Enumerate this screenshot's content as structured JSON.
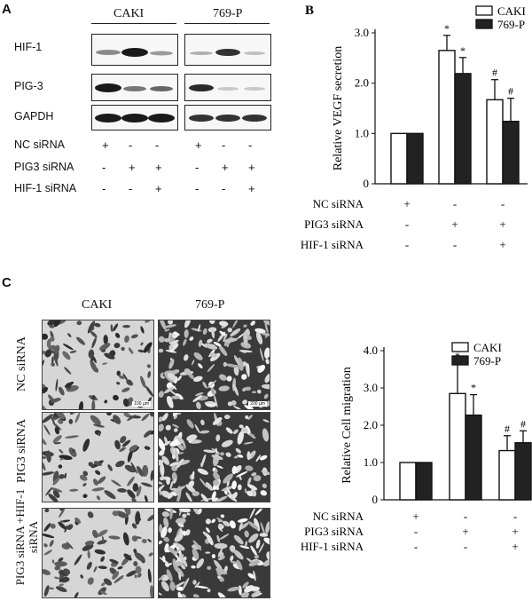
{
  "panel_a": {
    "letter": "A",
    "cell_lines": [
      "CAKI",
      "769-P"
    ],
    "blot_rows": [
      "HIF-1",
      "PIG-3",
      "GAPDH"
    ],
    "conditions": [
      {
        "name": "NC siRNA",
        "marks": [
          "+",
          "-",
          "-",
          "+",
          "-",
          "-"
        ]
      },
      {
        "name": "PIG3 siRNA",
        "marks": [
          "-",
          "+",
          "+",
          "-",
          "+",
          "+"
        ]
      },
      {
        "name": "HIF-1 siRNA",
        "marks": [
          "-",
          "-",
          "+",
          "-",
          "-",
          "+"
        ]
      }
    ]
  },
  "panel_c": {
    "letter": "C",
    "cell_lines": [
      "CAKI",
      "769-P"
    ],
    "row_labels": [
      "NC siRNA",
      "PIG3 siRNA",
      "PIG3 siRNA +HIF-1 siRNA"
    ],
    "scale_bars": [
      "100 µm",
      "200 µm"
    ]
  },
  "chart_data": [
    {
      "letter": "B",
      "type": "bar",
      "ylabel": "Relative VEGF secretion",
      "ylim": [
        0,
        3.0
      ],
      "yticks": [
        "0",
        "1.0",
        "2.0",
        "3.0"
      ],
      "groups": 3,
      "series": [
        {
          "name": "CAKI",
          "values": [
            1.0,
            2.65,
            1.67
          ],
          "errors": [
            0,
            0.3,
            0.4
          ],
          "marks": [
            "",
            "*",
            "#"
          ],
          "fill": "#ffffff"
        },
        {
          "name": "769-P",
          "values": [
            1.0,
            2.19,
            1.24
          ],
          "errors": [
            0,
            0.32,
            0.46
          ],
          "marks": [
            "",
            "*",
            "#"
          ],
          "fill": "#222222"
        }
      ],
      "conditions": [
        {
          "name": "NC siRNA",
          "marks": [
            "+",
            "-",
            "-"
          ]
        },
        {
          "name": "PIG3 siRNA",
          "marks": [
            "-",
            "+",
            "+"
          ]
        },
        {
          "name": "HIF-1 siRNA",
          "marks": [
            "-",
            "-",
            "+"
          ]
        }
      ]
    },
    {
      "type": "bar",
      "ylabel": "Relative Cell migration",
      "ylim": [
        0,
        4.0
      ],
      "yticks": [
        "0",
        "1.0",
        "2.0",
        "3.0",
        "4.0"
      ],
      "groups": 3,
      "series": [
        {
          "name": "CAKI",
          "values": [
            1.0,
            2.85,
            1.32
          ],
          "errors": [
            0,
            0.82,
            0.4
          ],
          "marks": [
            "",
            "*",
            "#"
          ],
          "fill": "#ffffff"
        },
        {
          "name": "769-P",
          "values": [
            1.0,
            2.27,
            1.53
          ],
          "errors": [
            0,
            0.55,
            0.32
          ],
          "marks": [
            "",
            "*",
            "#"
          ],
          "fill": "#222222"
        }
      ],
      "conditions": [
        {
          "name": "NC siRNA",
          "marks": [
            "+",
            "-",
            "-"
          ]
        },
        {
          "name": "PIG3 siRNA",
          "marks": [
            "-",
            "+",
            "+"
          ]
        },
        {
          "name": "HIF-1 siRNA",
          "marks": [
            "-",
            "-",
            "+"
          ]
        }
      ]
    }
  ]
}
